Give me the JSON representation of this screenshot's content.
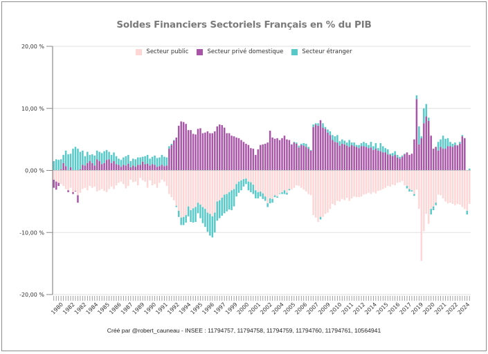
{
  "chart_data": {
    "type": "bar",
    "stacked": true,
    "title": "Soldes Financiers Sectoriels Français en % du PIB",
    "xlabel": "",
    "ylabel": "",
    "ylim": [
      -20,
      20
    ],
    "yticks": [
      20,
      10,
      0,
      -10,
      -20
    ],
    "ytick_labels": [
      "20,00 %",
      "10,00 %",
      "0,00 %",
      "-10,00 %",
      "-20,00 %"
    ],
    "grid": true,
    "legend_position": "top-center",
    "frequency": "quarterly",
    "start": "1980Q1",
    "xtick_labels": [
      "1980",
      "1982",
      "1982",
      "1984",
      "1985",
      "1986",
      "1987",
      "1989",
      "1990",
      "1991",
      "1992",
      "1994",
      "1995",
      "1996",
      "1997",
      "1999",
      "2000",
      "2001",
      "2002",
      "2004",
      "2005",
      "2006",
      "2007",
      "2009",
      "2010",
      "2011",
      "2012",
      "2014",
      "2015",
      "2016",
      "2017",
      "2019",
      "2020",
      "2021",
      "2022",
      "2024"
    ],
    "series": [
      {
        "name": "Secteur public",
        "color": "#ffd6d6",
        "values": [
          -1.5,
          -1.8,
          -2.0,
          -2.2,
          -2.5,
          -3.0,
          -3.2,
          -2.8,
          -3.5,
          -3.3,
          -4.0,
          -3.6,
          -3.0,
          -2.8,
          -3.2,
          -2.5,
          -2.8,
          -2.6,
          -3.4,
          -3.2,
          -3.0,
          -3.3,
          -3.5,
          -3.0,
          -2.6,
          -3.0,
          -2.4,
          -2.0,
          -1.8,
          -2.2,
          -2.9,
          -2.5,
          -1.5,
          -1.9,
          -1.8,
          -2.4,
          -1.2,
          -1.6,
          -1.8,
          -2.8,
          -1.6,
          -2.4,
          -2.2,
          -2.8,
          -2.0,
          -1.5,
          -1.8,
          -2.5,
          -3.8,
          -4.3,
          -4.8,
          -5.7,
          -6.5,
          -7.6,
          -7.5,
          -7.2,
          -5.8,
          -6.4,
          -6.1,
          -5.9,
          -5.2,
          -5.5,
          -5.9,
          -6.2,
          -6.8,
          -7.0,
          -7.4,
          -6.8,
          -5.0,
          -4.8,
          -4.4,
          -3.9,
          -3.8,
          -3.5,
          -3.2,
          -3.0,
          -2.2,
          -1.8,
          -1.6,
          -1.4,
          -1.3,
          -1.8,
          -1.9,
          -2.3,
          -3.2,
          -3.5,
          -3.4,
          -3.7,
          -4.2,
          -5.3,
          -4.5,
          -4.6,
          -4.0,
          -4.2,
          -3.7,
          -3.5,
          -3.2,
          -3.6,
          -3.0,
          -3.1,
          -2.8,
          -2.4,
          -2.5,
          -2.8,
          -3.1,
          -3.4,
          -3.8,
          -4.0,
          -7.2,
          -7.6,
          -8.3,
          -7.5,
          -7.5,
          -7.0,
          -6.8,
          -6.2,
          -5.4,
          -5.6,
          -4.9,
          -5.0,
          -4.6,
          -4.8,
          -4.4,
          -4.9,
          -4.5,
          -4.2,
          -4.3,
          -4.3,
          -4.2,
          -3.9,
          -3.8,
          -3.6,
          -3.8,
          -3.5,
          -3.7,
          -3.3,
          -3.2,
          -3.0,
          -2.8,
          -2.5,
          -2.6,
          -2.3,
          -2.4,
          -2.0,
          -1.9,
          -1.7,
          -2.4,
          -2.5,
          -3.0,
          -3.2,
          -3.8,
          -3.1,
          -6.2,
          -14.6,
          -9.8,
          -7.0,
          -8.6,
          -6.2,
          -5.8,
          -5.2,
          -3.9,
          -4.0,
          -4.5,
          -5.0,
          -5.3,
          -5.2,
          -5.4,
          -5.6,
          -5.4,
          -5.5,
          -5.9,
          -6.2,
          -6.5,
          -5.4
        ]
      },
      {
        "name": "Secteur privé domestique",
        "color": "#a855a8",
        "values": [
          -1.3,
          -1.3,
          -0.5,
          0.2,
          1.2,
          0.7,
          -0.3,
          0.5,
          -0.3,
          -0.1,
          -1.2,
          0.2,
          0.9,
          0.8,
          1.2,
          1.5,
          1.2,
          0.8,
          1.8,
          1.5,
          1.0,
          1.2,
          1.7,
          1.8,
          1.2,
          1.5,
          1.0,
          0.9,
          0.6,
          0.9,
          0.8,
          1.1,
          0.5,
          0.8,
          0.6,
          0.9,
          0.9,
          1.4,
          1.0,
          1.1,
          0.8,
          1.0,
          0.9,
          0.6,
          0.7,
          0.9,
          0.7,
          0.8,
          3.5,
          4.1,
          4.8,
          5.3,
          7.2,
          7.9,
          7.8,
          7.5,
          6.5,
          6.5,
          5.9,
          5.8,
          6.7,
          6.8,
          6.0,
          6.1,
          6.3,
          6.0,
          6.0,
          6.3,
          7.1,
          7.4,
          7.3,
          6.9,
          6.0,
          6.0,
          5.6,
          5.5,
          5.3,
          5.2,
          4.9,
          4.6,
          4.3,
          4.1,
          3.6,
          3.5,
          2.5,
          3.4,
          4.1,
          4.2,
          4.3,
          4.5,
          6.4,
          5.3,
          5.1,
          5.2,
          4.9,
          5.2,
          5.6,
          5.0,
          4.9,
          4.2,
          4.5,
          4.3,
          3.7,
          4.1,
          4.0,
          3.8,
          3.5,
          3.2,
          7.0,
          7.4,
          7.2,
          8.1,
          6.9,
          6.7,
          6.1,
          5.7,
          4.9,
          4.6,
          4.5,
          4.0,
          4.3,
          4.2,
          4.0,
          3.8,
          4.1,
          3.9,
          3.8,
          3.6,
          3.9,
          3.9,
          3.8,
          3.6,
          3.7,
          3.3,
          3.5,
          3.2,
          3.1,
          2.9,
          2.9,
          2.6,
          2.5,
          2.3,
          2.5,
          2.1,
          1.9,
          2.2,
          2.6,
          2.9,
          2.5,
          2.7,
          5.0,
          11.5,
          4.2,
          5.2,
          7.6,
          8.7,
          8.0,
          5.6,
          3.5,
          3.8,
          3.2,
          3.8,
          3.5,
          3.5,
          3.9,
          3.9,
          3.8,
          4.1,
          4.0,
          4.3,
          5.5,
          5.2
        ]
      },
      {
        "name": "Secteur étranger",
        "color": "#57c9c9",
        "values": [
          1.5,
          1.8,
          1.7,
          1.6,
          1.3,
          2.5,
          2.6,
          2.2,
          3.5,
          3.8,
          3.5,
          2.8,
          2.3,
          1.5,
          1.8,
          1.0,
          1.4,
          1.6,
          1.4,
          1.5,
          1.8,
          1.9,
          1.6,
          1.2,
          1.3,
          1.4,
          1.3,
          1.0,
          1.1,
          1.2,
          1.5,
          1.4,
          1.0,
          1.1,
          1.2,
          1.2,
          1.2,
          0.8,
          1.3,
          1.4,
          1.1,
          1.2,
          1.5,
          1.4,
          1.4,
          1.6,
          1.5,
          1.3,
          0.4,
          0.2,
          0.1,
          -0.2,
          -1.0,
          -1.2,
          -1.3,
          -1.2,
          -1.6,
          -1.9,
          -2.3,
          -2.4,
          -1.7,
          -2.2,
          -2.6,
          -2.9,
          -3.1,
          -3.5,
          -3.4,
          -3.2,
          -3.1,
          -2.9,
          -2.9,
          -3.0,
          -2.8,
          -2.8,
          -3.2,
          -2.8,
          -2.0,
          -1.8,
          -1.6,
          -1.2,
          -0.9,
          -1.4,
          -1.6,
          -1.5,
          -1.3,
          -1.0,
          -0.8,
          -0.9,
          -0.7,
          -0.6,
          -0.8,
          -0.6,
          -0.3,
          -0.2,
          -0.1,
          -0.3,
          -0.6,
          -0.3,
          -0.2,
          0.0,
          0.1,
          0.2,
          0.3,
          0.2,
          0.4,
          0.5,
          0.3,
          0.1,
          0.4,
          0.2,
          0.4,
          -0.4,
          0.7,
          0.3,
          0.5,
          0.6,
          0.8,
          0.9,
          1.2,
          0.7,
          0.7,
          0.6,
          0.5,
          1.1,
          0.4,
          0.6,
          0.3,
          0.5,
          0.5,
          0.7,
          0.6,
          0.5,
          0.9,
          0.6,
          0.9,
          0.4,
          1.3,
          1.0,
          0.7,
          0.8,
          0.2,
          0.5,
          0.6,
          0.4,
          0.3,
          0.2,
          0.1,
          -0.4,
          -0.4,
          -0.2,
          -0.3,
          0.6,
          2.9,
          0.3,
          2.4,
          2.0,
          0.5,
          -0.9,
          -0.6,
          -0.4,
          1.4,
          1.2,
          2.1,
          1.6,
          1.3,
          0.7,
          0.5,
          0.4,
          0.1,
          0.3,
          0.2,
          0.0,
          -0.6,
          0.3
        ]
      }
    ]
  },
  "footer": "Créé par @robert_cauneau - INSEE : 11794757, 11794758, 11794759, 11794760, 11794761, 10564941"
}
